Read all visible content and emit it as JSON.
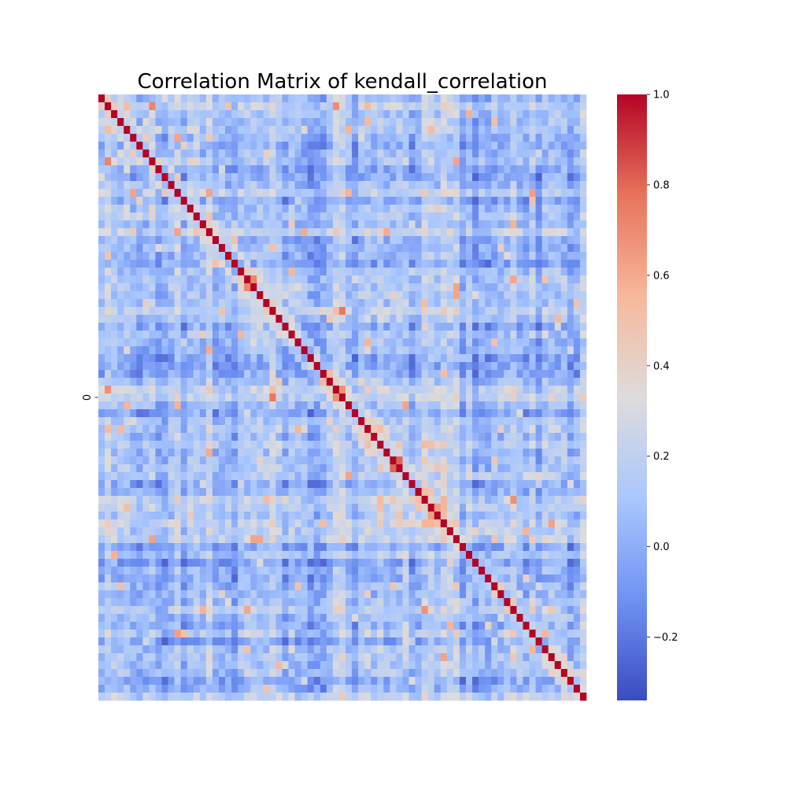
{
  "chart_data": {
    "type": "heatmap",
    "title": "Correlation Matrix of kendall_correlation",
    "xlabel": "",
    "ylabel": "",
    "y_tick_labels": [
      "0"
    ],
    "matrix_size": 77,
    "value_range": [
      -0.34,
      1.0
    ],
    "diagonal_value": 1.0,
    "colormap": "coolwarm",
    "colormap_stops": [
      "#3b4cc0",
      "#6f92f3",
      "#aac7fd",
      "#dddcdc",
      "#f7b89c",
      "#e7745b",
      "#b40426"
    ],
    "colorbar": {
      "ticks": [
        1.0,
        0.8,
        0.6,
        0.4,
        0.2,
        0.0,
        -0.2
      ],
      "tick_labels": [
        "1.0",
        "0.8",
        "0.6",
        "0.4",
        "0.2",
        "0.0",
        "−0.2"
      ]
    }
  }
}
